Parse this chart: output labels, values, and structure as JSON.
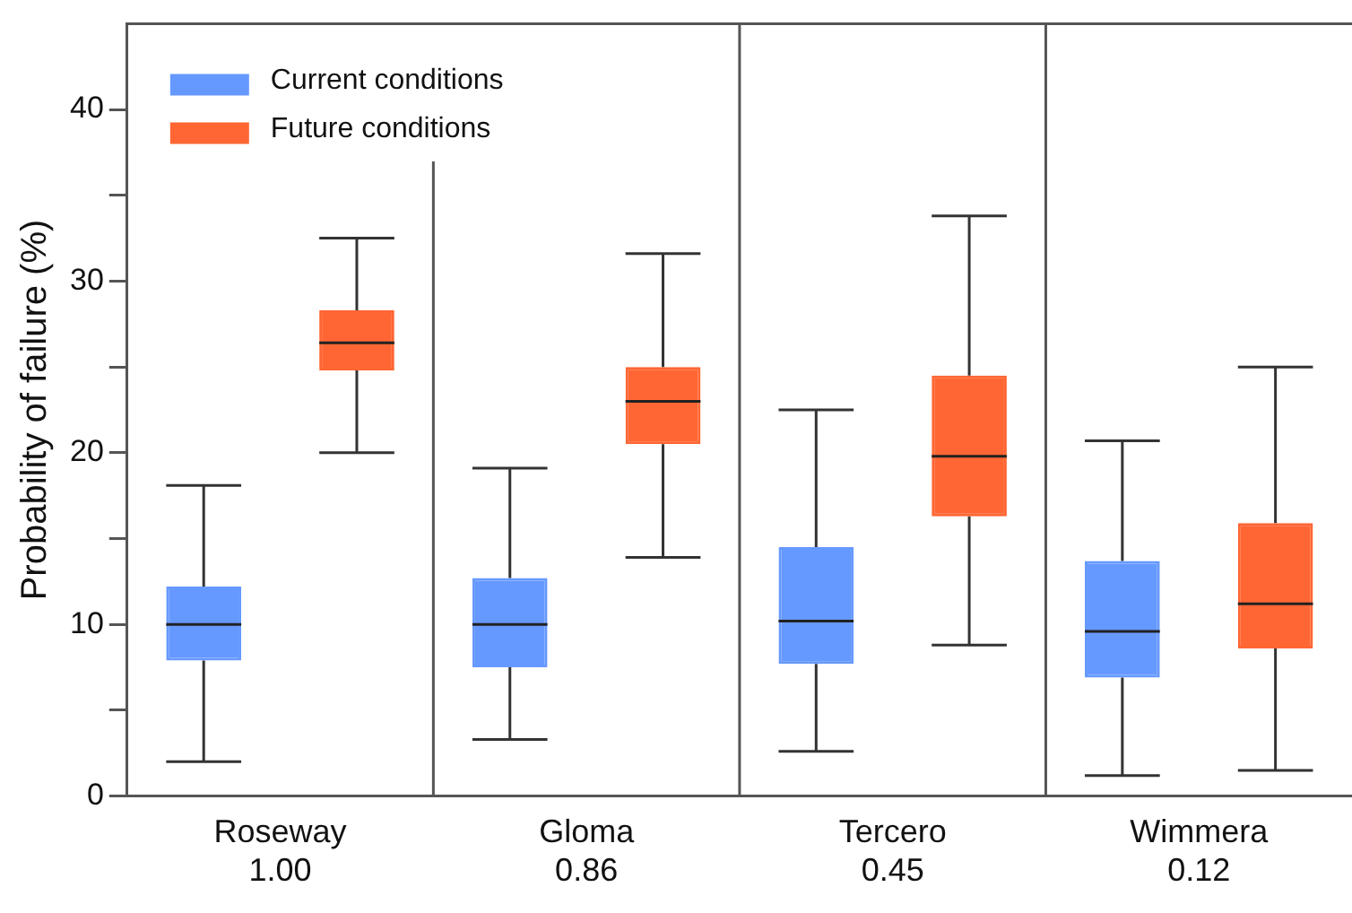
{
  "chart_data": {
    "type": "box",
    "ylabel": "Probability of failure (%)",
    "categories": [
      "Roseway\n1.00",
      "Gloma\n0.86",
      "Tercero\n0.45",
      "Wimmera\n0.12"
    ],
    "ylim": [
      0,
      45
    ],
    "yticks": [
      0,
      {
        "value": 5,
        "label": null
      },
      10,
      {
        "value": 15,
        "label": null
      },
      20,
      {
        "value": 25,
        "label": null
      },
      30,
      {
        "value": 35,
        "label": null
      },
      40
    ],
    "legend": "top left",
    "grid": false,
    "series": [
      {
        "name": "Current conditions",
        "color": "#6699ff",
        "boxes": [
          {
            "low": 2.0,
            "q1": 7.9,
            "median": 10.0,
            "q3": 12.2,
            "high": 18.1
          },
          {
            "low": 3.3,
            "q1": 7.5,
            "median": 10.0,
            "q3": 12.7,
            "high": 19.1
          },
          {
            "low": 2.6,
            "q1": 7.7,
            "median": 10.2,
            "q3": 14.5,
            "high": 22.5
          },
          {
            "low": 1.2,
            "q1": 6.9,
            "median": 9.6,
            "q3": 13.7,
            "high": 20.7
          }
        ]
      },
      {
        "name": "Future conditions",
        "color": "#ff6633",
        "boxes": [
          {
            "low": 20.0,
            "q1": 24.8,
            "median": 26.4,
            "q3": 28.3,
            "high": 32.5
          },
          {
            "low": 13.9,
            "q1": 20.5,
            "median": 23.0,
            "q3": 25.0,
            "high": 31.6
          },
          {
            "low": 8.8,
            "q1": 16.3,
            "median": 19.8,
            "q3": 24.5,
            "high": 33.8
          },
          {
            "low": 1.5,
            "q1": 8.6,
            "median": 11.2,
            "q3": 15.9,
            "high": 25.0
          }
        ]
      }
    ]
  }
}
